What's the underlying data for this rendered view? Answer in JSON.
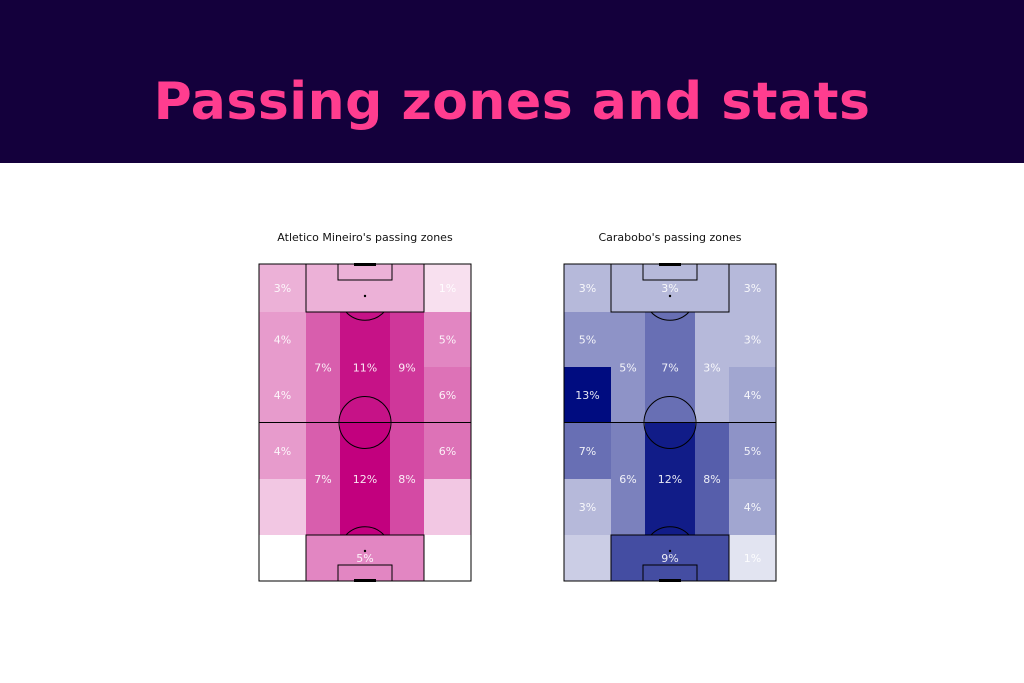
{
  "page": {
    "title": "Passing zones and stats"
  },
  "chart_data": [
    {
      "type": "heatmap",
      "title": "Atletico Mineiro's passing zones",
      "grid": false,
      "cells": [
        {
          "id": "L-r1",
          "value": 3,
          "label": "3%"
        },
        {
          "id": "C-r1",
          "value": 3,
          "label": ""
        },
        {
          "id": "R-r1",
          "value": 1,
          "label": "1%"
        },
        {
          "id": "L-r2",
          "value": 4,
          "label": "4%"
        },
        {
          "id": "R-r2",
          "value": 5,
          "label": "5%"
        },
        {
          "id": "L-r3",
          "value": 4,
          "label": "4%"
        },
        {
          "id": "R-r3",
          "value": 6,
          "label": "6%"
        },
        {
          "id": "HL-top",
          "value": 7,
          "label": "7%"
        },
        {
          "id": "C-top",
          "value": 11,
          "label": "11%"
        },
        {
          "id": "HR-top",
          "value": 9,
          "label": "9%"
        },
        {
          "id": "L-r4",
          "value": 4,
          "label": "4%"
        },
        {
          "id": "R-r4",
          "value": 6,
          "label": "6%"
        },
        {
          "id": "L-r5",
          "value": 2,
          "label": ""
        },
        {
          "id": "R-r5",
          "value": 2,
          "label": ""
        },
        {
          "id": "HL-bot",
          "value": 7,
          "label": "7%"
        },
        {
          "id": "C-bot",
          "value": 12,
          "label": "12%"
        },
        {
          "id": "HR-bot",
          "value": 8,
          "label": "8%"
        },
        {
          "id": "L-r6",
          "value": 0,
          "label": "0%"
        },
        {
          "id": "C-r6",
          "value": 5,
          "label": "5%"
        },
        {
          "id": "R-r6",
          "value": 0,
          "label": "0%"
        }
      ],
      "colors": {
        "low": "#ffffff",
        "high": "#c2007e",
        "max_value": 12
      }
    },
    {
      "type": "heatmap",
      "title": "Carabobo's passing zones",
      "grid": false,
      "cells": [
        {
          "id": "L-r1",
          "value": 3,
          "label": "3%"
        },
        {
          "id": "C-r1",
          "value": 3,
          "label": "3%"
        },
        {
          "id": "R-r1",
          "value": 3,
          "label": "3%"
        },
        {
          "id": "L-r2",
          "value": 5,
          "label": "5%"
        },
        {
          "id": "R-r2",
          "value": 3,
          "label": "3%"
        },
        {
          "id": "L-r3",
          "value": 13,
          "label": "13%"
        },
        {
          "id": "R-r3",
          "value": 4,
          "label": "4%"
        },
        {
          "id": "HL-top",
          "value": 5,
          "label": "5%"
        },
        {
          "id": "C-top",
          "value": 7,
          "label": "7%"
        },
        {
          "id": "HR-top",
          "value": 3,
          "label": "3%"
        },
        {
          "id": "L-r4",
          "value": 7,
          "label": "7%"
        },
        {
          "id": "R-r4",
          "value": 5,
          "label": "5%"
        },
        {
          "id": "L-r5",
          "value": 3,
          "label": "3%"
        },
        {
          "id": "R-r5",
          "value": 4,
          "label": "4%"
        },
        {
          "id": "HL-bot",
          "value": 6,
          "label": "6%"
        },
        {
          "id": "C-bot",
          "value": 12,
          "label": "12%"
        },
        {
          "id": "HR-bot",
          "value": 8,
          "label": "8%"
        },
        {
          "id": "L-r6",
          "value": 2,
          "label": ""
        },
        {
          "id": "C-r6",
          "value": 9,
          "label": "9%"
        },
        {
          "id": "R-r6",
          "value": 1,
          "label": "1%"
        }
      ],
      "colors": {
        "low": "#ffffff",
        "high": "#000c80",
        "max_value": 13
      }
    }
  ]
}
